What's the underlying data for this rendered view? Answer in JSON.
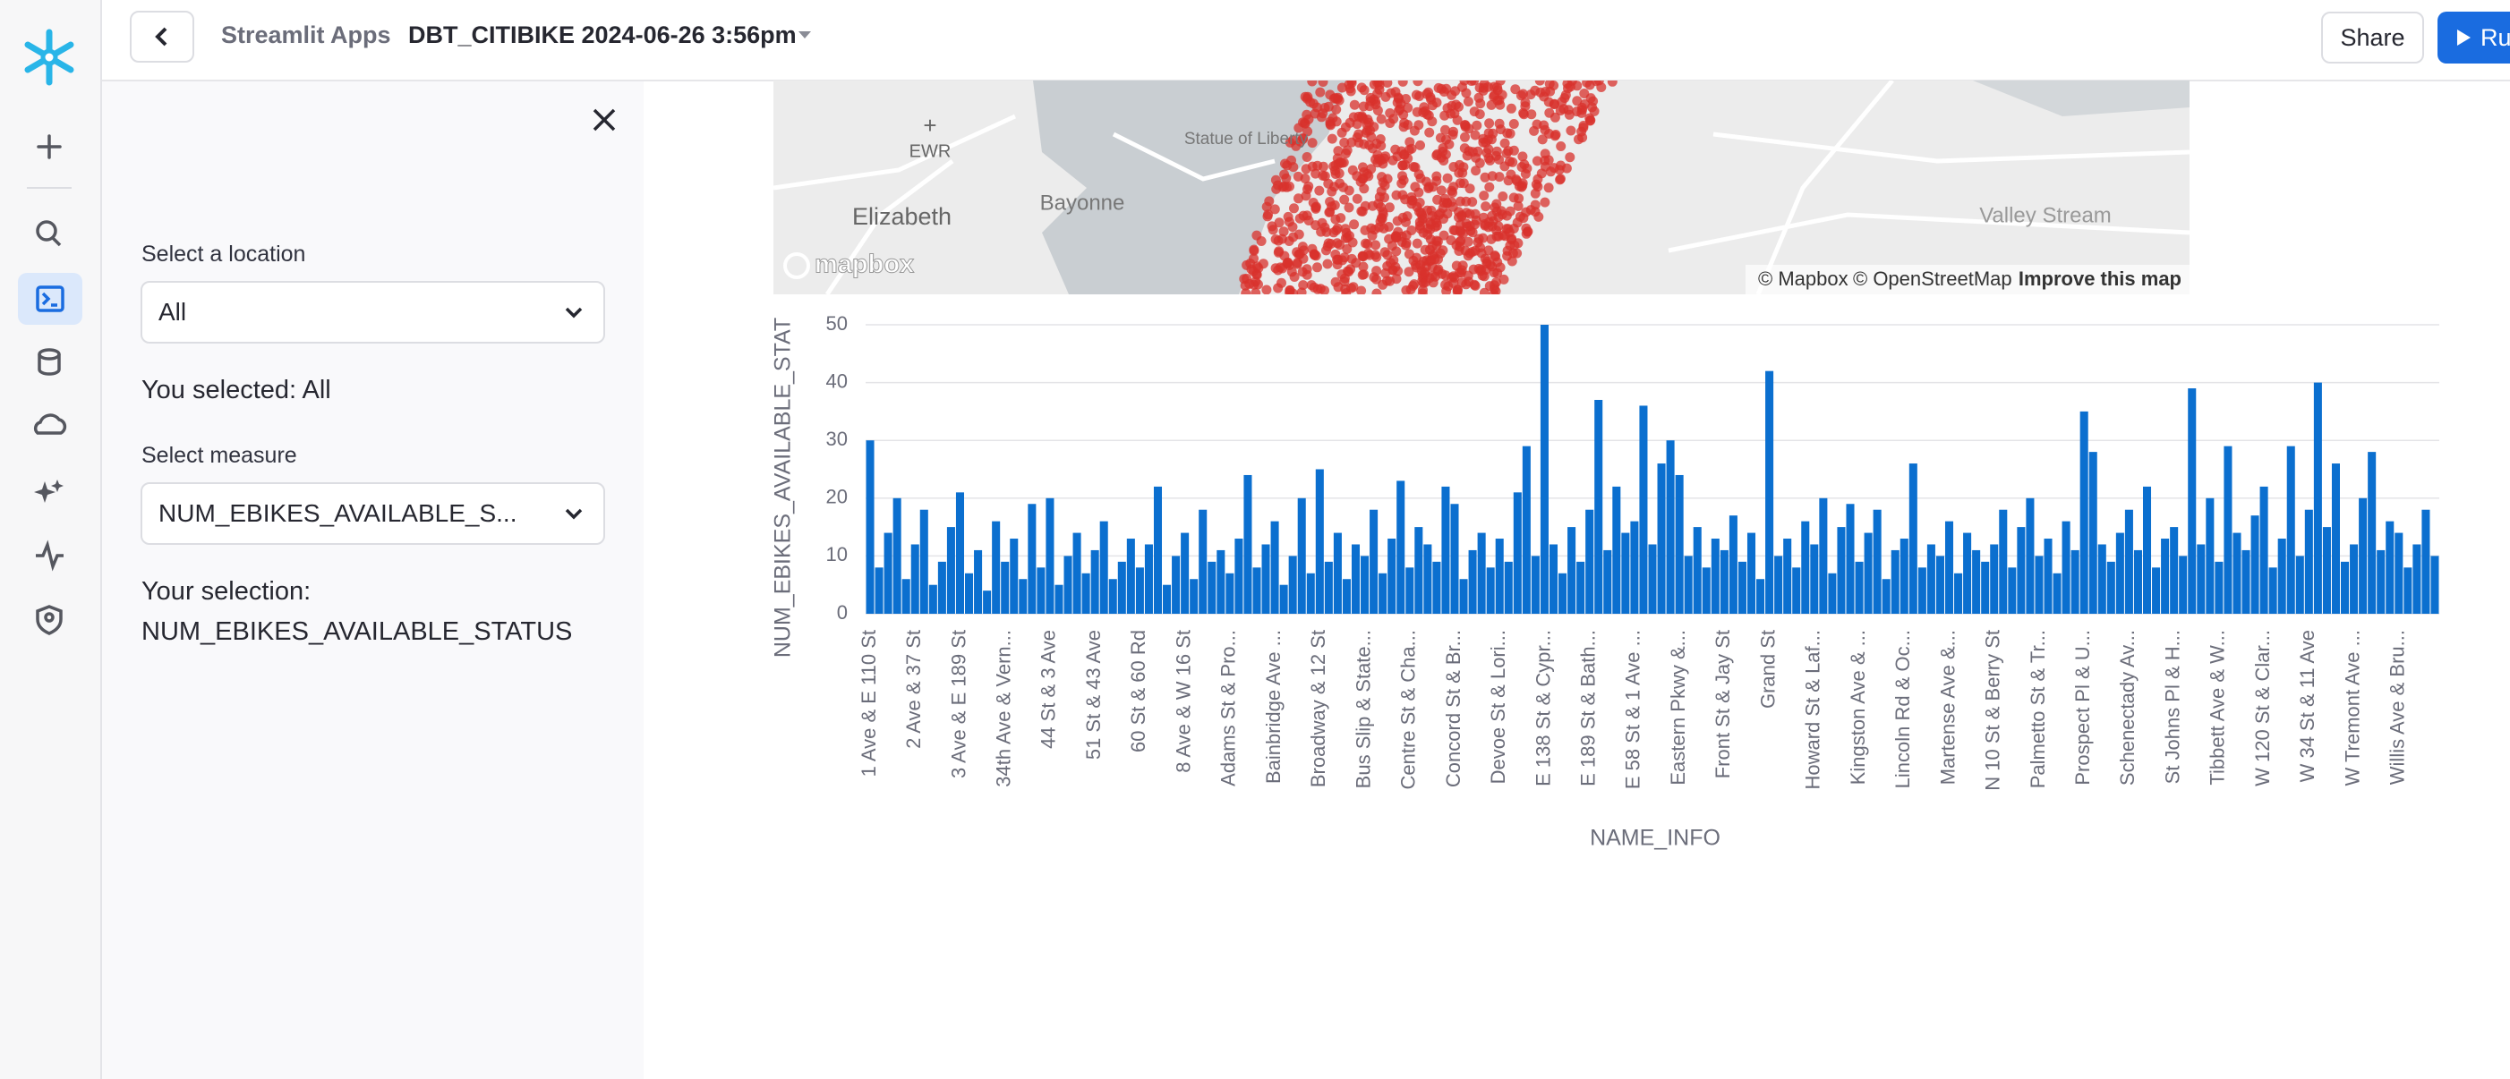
{
  "header": {
    "breadcrumb": "Streamlit Apps",
    "app_name": "DBT_CITIBIKE 2024-06-26 3:56pm",
    "share": "Share",
    "run": "Run"
  },
  "sidebar": {
    "location_label": "Select a location",
    "location_value": "All",
    "location_echo": "You selected: All",
    "measure_label": "Select measure",
    "measure_value": "NUM_EBIKES_AVAILABLE_S...",
    "selection_label": "Your selection:",
    "selection_value": "NUM_EBIKES_AVAILABLE_STATUS"
  },
  "map": {
    "labels": [
      "EWR",
      "Statue of Liberty",
      "Elizabeth",
      "Bayonne",
      "Valley Stream"
    ],
    "logo": "mapbox",
    "attribution": [
      "© Mapbox",
      "© OpenStreetMap",
      "Improve this map"
    ]
  },
  "chart_data": {
    "type": "bar",
    "x_label": "NAME_INFO",
    "y_label": "NUM_EBIKES_AVAILABLE_STAT",
    "color": "#0b6fcf",
    "grid": true,
    "ylim": [
      0,
      50
    ],
    "yticks": [
      0,
      10,
      20,
      30,
      40,
      50
    ],
    "categories": [
      "1 Ave & E 110 St",
      null,
      null,
      null,
      null,
      "2 Ave & 37 St",
      null,
      null,
      null,
      null,
      "3 Ave & E 189 St",
      null,
      null,
      null,
      null,
      "34th Ave & Vern...",
      null,
      null,
      null,
      null,
      "44 St & 3 Ave",
      null,
      null,
      null,
      null,
      "51 St & 43 Ave",
      null,
      null,
      null,
      null,
      "60 St & 60 Rd",
      null,
      null,
      null,
      null,
      "8 Ave & W 16 St",
      null,
      null,
      null,
      null,
      "Adams St & Pro...",
      null,
      null,
      null,
      null,
      "Bainbridge Ave ...",
      null,
      null,
      null,
      null,
      "Broadway & 12 St",
      null,
      null,
      null,
      null,
      "Bus Slip & State...",
      null,
      null,
      null,
      null,
      "Centre St & Cha...",
      null,
      null,
      null,
      null,
      "Concord St & Br...",
      null,
      null,
      null,
      null,
      "Devoe St & Lori...",
      null,
      null,
      null,
      null,
      "E 138 St & Cypr...",
      null,
      null,
      null,
      null,
      "E 189 St & Bath...",
      null,
      null,
      null,
      null,
      "E 58 St & 1 Ave ...",
      null,
      null,
      null,
      null,
      "Eastern Pkwy &...",
      null,
      null,
      null,
      null,
      "Front St & Jay St",
      null,
      null,
      null,
      null,
      "Grand St",
      null,
      null,
      null,
      null,
      "Howard St & Laf...",
      null,
      null,
      null,
      null,
      "Kingston Ave & ...",
      null,
      null,
      null,
      null,
      "Lincoln Rd & Oc...",
      null,
      null,
      null,
      null,
      "Martense Ave &...",
      null,
      null,
      null,
      null,
      "N 10 St & Berry St",
      null,
      null,
      null,
      null,
      "Palmetto St & Tr...",
      null,
      null,
      null,
      null,
      "Prospect Pl & U...",
      null,
      null,
      null,
      null,
      "Schenectady Av...",
      null,
      null,
      null,
      null,
      "St Johns Pl & H...",
      null,
      null,
      null,
      null,
      "Tibbett Ave & W...",
      null,
      null,
      null,
      null,
      "W 120 St & Clar...",
      null,
      null,
      null,
      null,
      "W 34 St & 11 Ave",
      null,
      null,
      null,
      null,
      "W Tremont Ave ...",
      null,
      null,
      null,
      null,
      "Willis Ave & Bru...",
      null,
      null,
      null,
      null
    ],
    "values": [
      30,
      8,
      14,
      20,
      6,
      12,
      18,
      5,
      9,
      15,
      21,
      7,
      11,
      4,
      16,
      9,
      13,
      6,
      19,
      8,
      20,
      5,
      10,
      14,
      7,
      11,
      16,
      6,
      9,
      13,
      8,
      12,
      22,
      5,
      10,
      14,
      6,
      18,
      9,
      11,
      7,
      13,
      24,
      8,
      12,
      16,
      5,
      10,
      20,
      7,
      25,
      9,
      14,
      6,
      12,
      10,
      18,
      7,
      13,
      23,
      8,
      15,
      12,
      9,
      22,
      19,
      6,
      11,
      14,
      8,
      13,
      9,
      21,
      29,
      10,
      50,
      12,
      7,
      15,
      9,
      18,
      37,
      11,
      22,
      14,
      16,
      36,
      12,
      26,
      30,
      24,
      10,
      15,
      8,
      13,
      11,
      17,
      9,
      14,
      6,
      42,
      10,
      13,
      8,
      16,
      12,
      20,
      7,
      15,
      19,
      9,
      14,
      18,
      6,
      11,
      13,
      26,
      8,
      12,
      10,
      16,
      7,
      14,
      11,
      9,
      12,
      18,
      8,
      15,
      20,
      10,
      13,
      7,
      16,
      11,
      35,
      28,
      12,
      9,
      14,
      18,
      11,
      22,
      8,
      13,
      15,
      10,
      39,
      12,
      20,
      9,
      29,
      14,
      11,
      17,
      22,
      8,
      13,
      29,
      10,
      18,
      40,
      15,
      26,
      9,
      12,
      20,
      28,
      11,
      16,
      14,
      8,
      12,
      18,
      10
    ]
  }
}
